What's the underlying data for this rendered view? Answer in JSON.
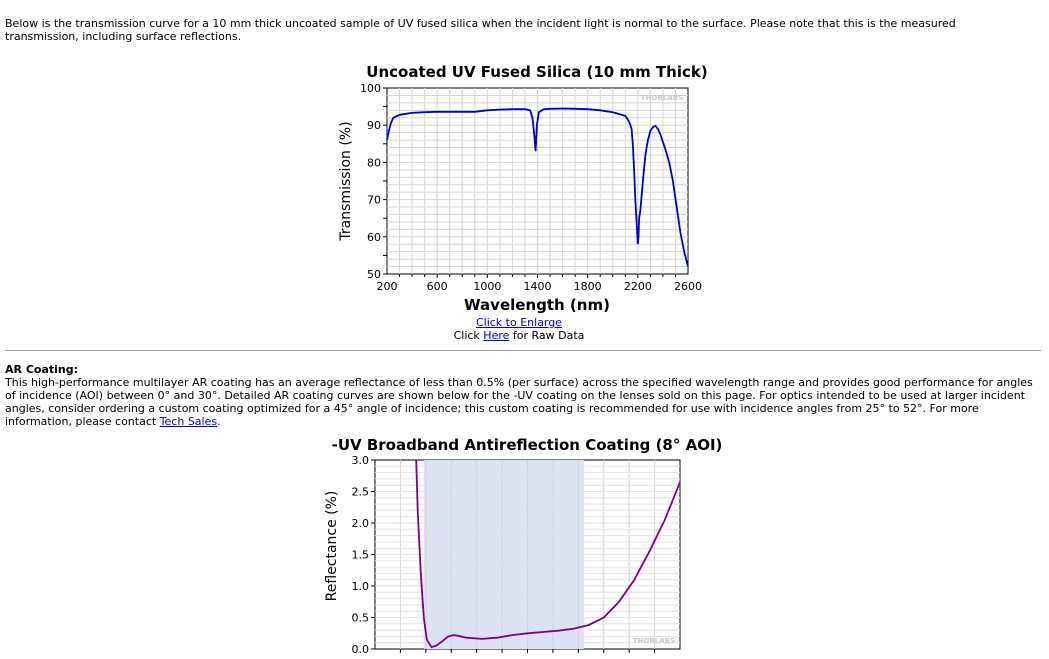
{
  "intro": {
    "text": "Below is the transmission curve for a 10 mm thick uncoated sample of UV fused silica when the incident light is normal to the surface. Please note that this is the measured transmission, including surface reflections."
  },
  "links": {
    "enlarge": "Click to Enlarge",
    "raw_prefix": "Click ",
    "raw_link": "Here",
    "raw_suffix": " for Raw Data"
  },
  "ar_coating": {
    "heading": "AR Coating:",
    "body": "This high-performance multilayer AR coating has an average reflectance of less than 0.5% (per surface) across the specified wavelength range and provides good performance for angles of incidence (AOI) between 0° and 30°. Detailed AR coating curves are shown below for the -UV coating on the lenses sold on this page. For optics intended to be used at larger incident angles, consider ordering a custom coating optimized for a 45° angle of incidence; this custom coating is recommended for use with incidence angles from 25° to 52°. For more information, please contact ",
    "link": "Tech Sales",
    "end": "."
  },
  "chart_data": [
    {
      "type": "line",
      "title": "Uncoated UV Fused Silica (10 mm Thick)",
      "xlabel": "Wavelength (nm)",
      "ylabel": "Transmission (%)",
      "xlim": [
        200,
        2600
      ],
      "ylim": [
        50,
        100
      ],
      "xticks": [
        200,
        600,
        1000,
        1400,
        1800,
        2200,
        2600
      ],
      "yticks": [
        50,
        60,
        70,
        80,
        90,
        100
      ],
      "grid": true,
      "watermark": "THORLABS",
      "color": "#0000cc",
      "x": [
        200,
        215,
        230,
        250,
        300,
        400,
        500,
        600,
        700,
        800,
        900,
        1000,
        1100,
        1200,
        1300,
        1340,
        1360,
        1375,
        1385,
        1395,
        1410,
        1450,
        1500,
        1600,
        1700,
        1800,
        1900,
        2000,
        2050,
        2100,
        2130,
        2150,
        2160,
        2170,
        2180,
        2190,
        2200,
        2205,
        2210,
        2220,
        2240,
        2260,
        2280,
        2300,
        2320,
        2340,
        2360,
        2380,
        2400,
        2420,
        2450,
        2480,
        2510,
        2540,
        2570,
        2600
      ],
      "y": [
        86,
        88.5,
        90.5,
        92,
        92.8,
        93.3,
        93.5,
        93.6,
        93.6,
        93.6,
        93.6,
        94,
        94.2,
        94.3,
        94.3,
        94,
        92,
        87,
        83,
        90,
        93.5,
        94.3,
        94.4,
        94.5,
        94.4,
        94.3,
        94,
        93.5,
        93,
        92.5,
        91,
        89,
        85,
        78,
        70,
        64,
        58,
        60,
        65,
        67,
        75,
        82,
        86,
        88.5,
        89.5,
        89.8,
        89,
        87.5,
        85.5,
        83.5,
        80,
        75,
        68,
        61,
        56,
        52
      ]
    },
    {
      "type": "line",
      "title": "-UV Broadband Antireflection Coating (8° AOI)",
      "xlabel": "",
      "ylabel": "Reflectance (%)",
      "ylim": [
        0,
        3
      ],
      "yticks": [
        0.0,
        0.5,
        1.0,
        1.5,
        2.0,
        2.5,
        3.0
      ],
      "grid": true,
      "watermark": "THORLABS",
      "color": "#800080",
      "shaded_region": [
        0.16,
        0.685
      ],
      "x_fraction": [
        0.135,
        0.14,
        0.15,
        0.16,
        0.17,
        0.185,
        0.2,
        0.22,
        0.24,
        0.26,
        0.28,
        0.3,
        0.35,
        0.4,
        0.45,
        0.5,
        0.55,
        0.6,
        0.65,
        0.7,
        0.75,
        0.8,
        0.85,
        0.9,
        0.95,
        1.0
      ],
      "y": [
        3.0,
        2.2,
        1.2,
        0.5,
        0.15,
        0.03,
        0.05,
        0.12,
        0.2,
        0.22,
        0.2,
        0.18,
        0.16,
        0.18,
        0.22,
        0.25,
        0.27,
        0.29,
        0.32,
        0.38,
        0.5,
        0.75,
        1.1,
        1.55,
        2.05,
        2.65
      ]
    }
  ]
}
